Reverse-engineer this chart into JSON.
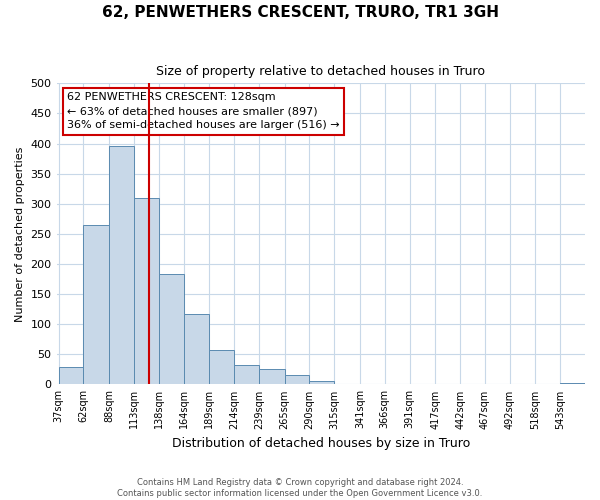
{
  "title": "62, PENWETHERS CRESCENT, TRURO, TR1 3GH",
  "subtitle": "Size of property relative to detached houses in Truro",
  "xlabel": "Distribution of detached houses by size in Truro",
  "ylabel": "Number of detached properties",
  "bar_color": "#c8d8e8",
  "bar_edge_color": "#5a8ab0",
  "bin_labels": [
    "37sqm",
    "62sqm",
    "88sqm",
    "113sqm",
    "138sqm",
    "164sqm",
    "189sqm",
    "214sqm",
    "239sqm",
    "265sqm",
    "290sqm",
    "315sqm",
    "341sqm",
    "366sqm",
    "391sqm",
    "417sqm",
    "442sqm",
    "467sqm",
    "492sqm",
    "518sqm",
    "543sqm"
  ],
  "bar_heights": [
    29,
    264,
    396,
    309,
    183,
    117,
    58,
    32,
    25,
    15,
    6,
    0,
    0,
    0,
    0,
    0,
    0,
    0,
    0,
    0,
    2
  ],
  "vline_x": 128,
  "vline_color": "#cc0000",
  "annotation_line1": "62 PENWETHERS CRESCENT: 128sqm",
  "annotation_line2": "← 63% of detached houses are smaller (897)",
  "annotation_line3": "36% of semi-detached houses are larger (516) →",
  "annotation_box_color": "#ffffff",
  "annotation_box_edge": "#cc0000",
  "ylim": [
    0,
    500
  ],
  "yticks": [
    0,
    50,
    100,
    150,
    200,
    250,
    300,
    350,
    400,
    450,
    500
  ],
  "footnote1": "Contains HM Land Registry data © Crown copyright and database right 2024.",
  "footnote2": "Contains public sector information licensed under the Open Government Licence v3.0.",
  "bin_edges_sqm": [
    37,
    62,
    88,
    113,
    138,
    164,
    189,
    214,
    239,
    265,
    290,
    315,
    341,
    366,
    391,
    417,
    442,
    467,
    492,
    518,
    543,
    568
  ],
  "background_color": "#ffffff",
  "grid_color": "#c8d8e8"
}
